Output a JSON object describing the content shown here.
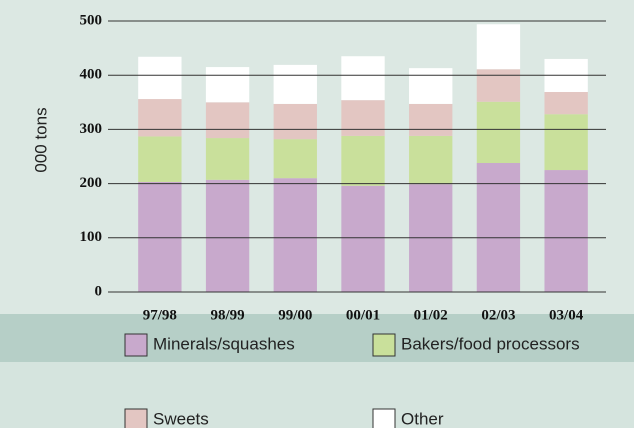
{
  "chart_data": {
    "type": "stacked_bar",
    "y_label": "000 tons",
    "categories": [
      "97/98",
      "98/99",
      "99/00",
      "00/01",
      "01/02",
      "02/03",
      "03/04"
    ],
    "series": [
      {
        "name": "Minerals/squashes",
        "color": "#c8a9cc",
        "values": [
          203,
          207,
          210,
          196,
          199,
          238,
          225
        ]
      },
      {
        "name": "Bakers/food processors",
        "color": "#c9e09b",
        "values": [
          84,
          77,
          72,
          92,
          89,
          113,
          103
        ]
      },
      {
        "name": "Sweets",
        "color": "#e3c6c2",
        "values": [
          69,
          66,
          65,
          66,
          59,
          60,
          41
        ]
      },
      {
        "name": "Other",
        "color": "#ffffff",
        "values": [
          78,
          65,
          72,
          81,
          66,
          83,
          61
        ]
      }
    ],
    "ylim": [
      0,
      500
    ],
    "yticks": [
      0,
      100,
      200,
      300,
      400,
      500
    ],
    "grid": true
  }
}
